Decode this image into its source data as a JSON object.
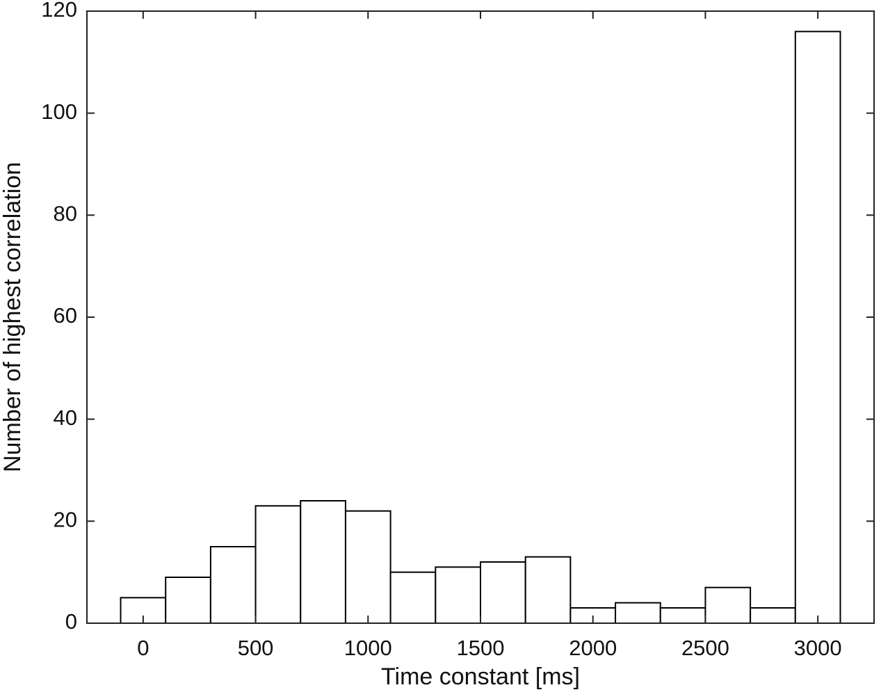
{
  "chart_data": {
    "type": "histogram",
    "xlabel": "Time constant [ms]",
    "ylabel": "Number of highest correlation",
    "bins": [
      -100,
      100,
      300,
      500,
      700,
      900,
      1100,
      1300,
      1500,
      1700,
      1900,
      2100,
      2300,
      2500,
      2700,
      2900,
      3100
    ],
    "values": [
      5,
      9,
      15,
      23,
      24,
      22,
      10,
      11,
      12,
      13,
      3,
      4,
      3,
      7,
      3,
      116
    ],
    "color": "#ffffff",
    "edgecolor": "#000000",
    "xlim": [
      -250,
      3250
    ],
    "xticks": [
      0,
      500,
      1000,
      1500,
      2000,
      2500,
      3000
    ],
    "ylim": [
      0,
      120
    ],
    "yticks": [
      0,
      20,
      40,
      60,
      80,
      100,
      120
    ]
  }
}
